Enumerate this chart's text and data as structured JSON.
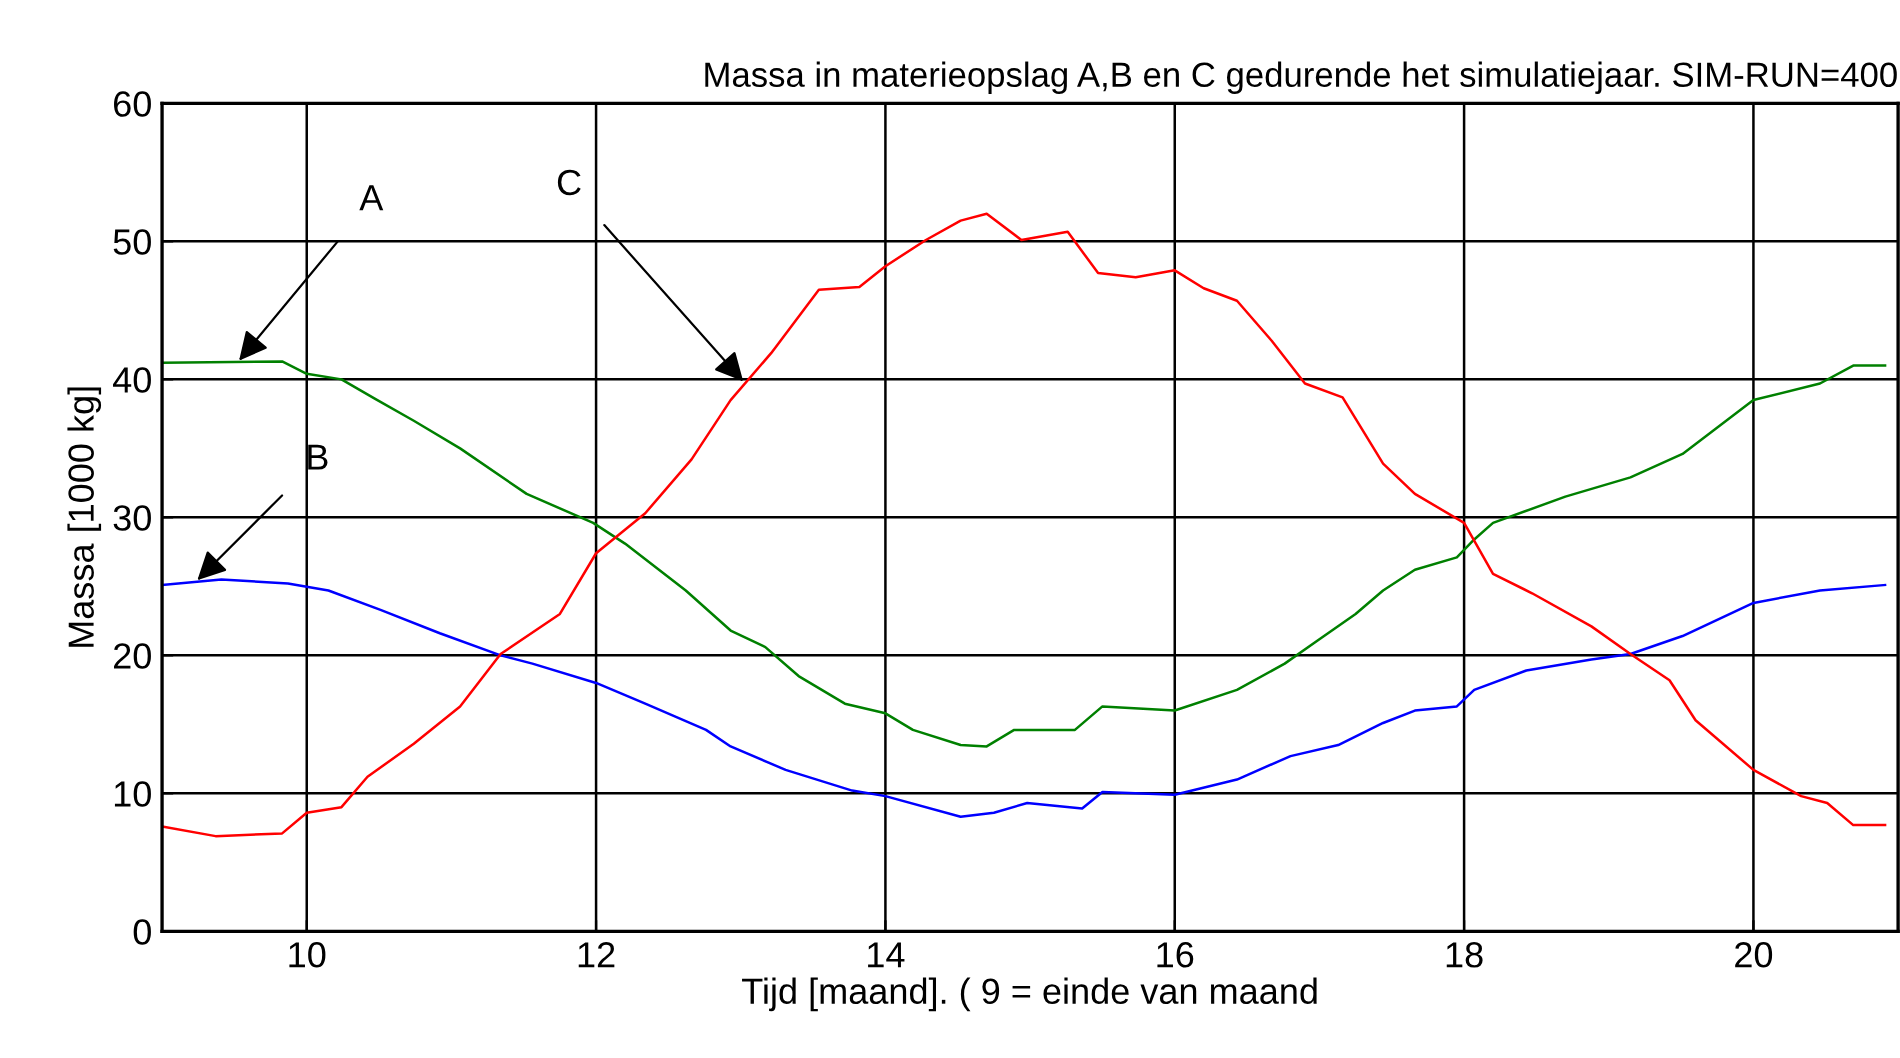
{
  "chart_data": {
    "type": "line",
    "title": "Massa in materieopslag A,B en C gedurende het simulatiejaar. SIM-RUN=400",
    "xlabel": "Tijd [maand]. ( 9 = einde van maand",
    "ylabel": "Massa [1000 kg]",
    "xlim": [
      9,
      21
    ],
    "ylim": [
      0,
      60
    ],
    "xticks": [
      10,
      12,
      14,
      16,
      18,
      20
    ],
    "yticks": [
      0,
      10,
      20,
      30,
      40,
      50,
      60
    ],
    "grid": true,
    "legend": false,
    "line_style": "solid",
    "marker": "none",
    "series": [
      {
        "color": "#008000",
        "x": [
          9.0,
          9.83,
          10.0,
          10.24,
          10.47,
          10.74,
          11.06,
          11.52,
          11.98,
          12.2,
          12.62,
          12.93,
          13.17,
          13.4,
          13.72,
          14.0,
          14.19,
          14.52,
          14.7,
          14.89,
          15.31,
          15.5,
          16.0,
          16.43,
          16.76,
          16.99,
          17.25,
          17.44,
          17.66,
          17.95,
          18.07,
          18.2,
          18.7,
          19.15,
          19.51,
          20.0,
          20.46,
          20.69,
          20.91
        ],
        "values": [
          41.2,
          41.3,
          40.4,
          40.0,
          38.6,
          37.0,
          35.0,
          31.7,
          29.6,
          28.1,
          24.7,
          21.8,
          20.6,
          18.5,
          16.5,
          15.8,
          14.6,
          13.5,
          13.4,
          14.6,
          14.6,
          16.3,
          16.0,
          17.5,
          19.4,
          21.1,
          23.0,
          24.7,
          26.2,
          27.1,
          28.4,
          29.6,
          31.5,
          32.9,
          34.6,
          38.5,
          39.7,
          41.0,
          41.0
        ]
      },
      {
        "color": "#0000ff",
        "x": [
          9.0,
          9.41,
          9.87,
          10.15,
          10.51,
          10.92,
          11.34,
          11.56,
          12.0,
          12.34,
          12.76,
          12.93,
          13.31,
          13.77,
          14.0,
          14.52,
          14.75,
          14.98,
          15.36,
          15.5,
          16.0,
          16.43,
          16.8,
          17.13,
          17.44,
          17.66,
          17.95,
          18.07,
          18.43,
          18.88,
          19.15,
          19.51,
          20.0,
          20.46,
          20.91
        ],
        "values": [
          25.1,
          25.5,
          25.2,
          24.7,
          23.3,
          21.6,
          20.0,
          19.4,
          18.0,
          16.5,
          14.6,
          13.4,
          11.7,
          10.2,
          9.8,
          8.3,
          8.6,
          9.3,
          8.9,
          10.1,
          9.9,
          11.0,
          12.7,
          13.5,
          15.1,
          16.0,
          16.3,
          17.5,
          18.9,
          19.7,
          20.1,
          21.4,
          23.8,
          24.7,
          25.1
        ]
      },
      {
        "color": "#ff0000",
        "x": [
          9.0,
          9.37,
          9.83,
          10.0,
          10.24,
          10.42,
          10.74,
          11.06,
          11.34,
          11.75,
          12.0,
          12.34,
          12.66,
          12.93,
          13.21,
          13.54,
          13.82,
          14.0,
          14.28,
          14.52,
          14.7,
          14.94,
          15.26,
          15.47,
          15.73,
          16.0,
          16.2,
          16.43,
          16.67,
          16.9,
          17.16,
          17.44,
          17.66,
          18.0,
          18.2,
          18.47,
          18.88,
          19.15,
          19.42,
          19.6,
          20.0,
          20.33,
          20.51,
          20.69,
          20.91
        ],
        "values": [
          7.6,
          6.9,
          7.1,
          8.6,
          9.0,
          11.2,
          13.6,
          16.3,
          20.1,
          23.0,
          27.4,
          30.3,
          34.2,
          38.5,
          41.9,
          46.5,
          46.7,
          48.2,
          50.1,
          51.5,
          52.0,
          50.1,
          50.7,
          47.7,
          47.4,
          47.9,
          46.6,
          45.7,
          42.8,
          39.7,
          38.7,
          33.9,
          31.7,
          29.6,
          25.9,
          24.5,
          22.1,
          20.1,
          18.2,
          15.3,
          11.7,
          9.8,
          9.3,
          7.7,
          7.7
        ]
      }
    ],
    "annotations": [
      {
        "text": "A",
        "x": 9.52,
        "y": 41.2
      },
      {
        "text": "B",
        "x": 9.23,
        "y": 25.3
      },
      {
        "text": "C",
        "x": 13.03,
        "y": 39.7
      }
    ]
  }
}
